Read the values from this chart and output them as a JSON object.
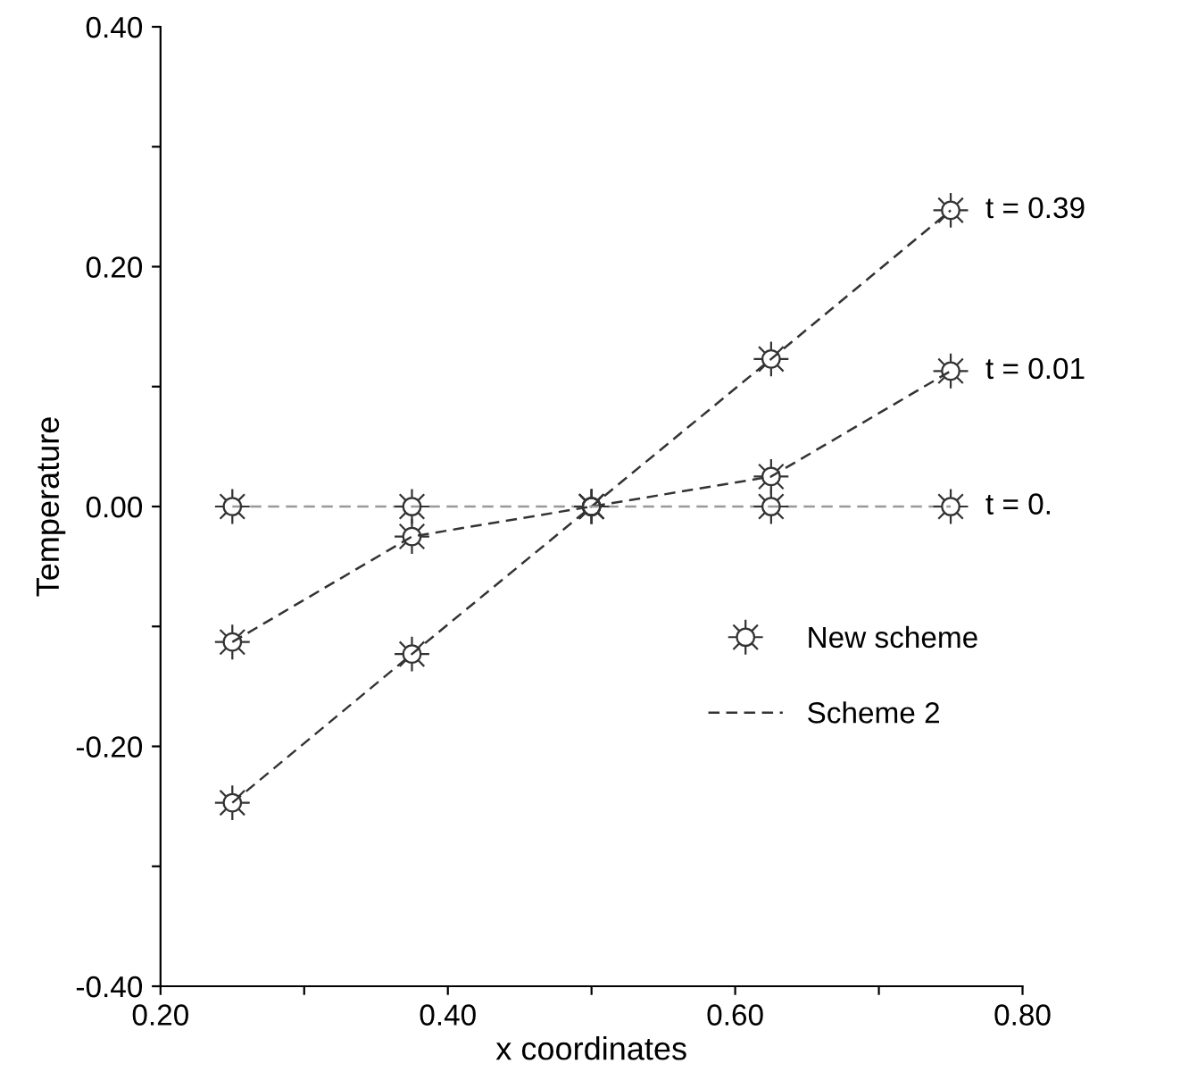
{
  "chart_data": {
    "type": "line",
    "xlabel": "x coordinates",
    "ylabel": "Temperature",
    "x": [
      0.25,
      0.375,
      0.5,
      0.625,
      0.75
    ],
    "series": [
      {
        "line_style": "dashed",
        "marker": "none",
        "color": "#333333",
        "name": "Scheme 2",
        "values": [
          -0.247,
          -0.123,
          0,
          0.123,
          0.247
        ]
      },
      {
        "line_style": "dashed",
        "marker": "none",
        "color": "#333333",
        "values": [
          -0.113,
          -0.025,
          0,
          0.025,
          0.113
        ]
      },
      {
        "line_style": "dashed",
        "marker": "none",
        "color": "#999999",
        "values": [
          0,
          0,
          0,
          0,
          0
        ]
      },
      {
        "type": "scatter",
        "marker": "cross",
        "color": "#333333",
        "values": [
          0,
          0,
          0,
          0,
          0
        ]
      },
      {
        "type": "scatter",
        "marker": "cross",
        "color": "#333333",
        "values": [
          -0.113,
          -0.025,
          0,
          0.025,
          0.113
        ]
      },
      {
        "type": "scatter",
        "marker": "cross",
        "color": "#333333",
        "name": "New scheme",
        "values": [
          -0.247,
          -0.123,
          0,
          0.123,
          0.247
        ]
      }
    ],
    "annotations": [
      "t = 0.39",
      "t = 0.01",
      "t = 0."
    ],
    "xlim": [
      0.2,
      0.8
    ],
    "xticks": [
      {
        "value": 0.2,
        "label": "0.20"
      },
      {
        "value": 0.3,
        "label": null
      },
      {
        "value": 0.4,
        "label": "0.40"
      },
      {
        "value": 0.5,
        "label": null
      },
      {
        "value": 0.6,
        "label": "0.60"
      },
      {
        "value": 0.7,
        "label": null
      },
      {
        "value": 0.8,
        "label": "0.80"
      }
    ],
    "ylim": [
      -0.4,
      0.4
    ],
    "yticks": [
      {
        "value": -0.4,
        "label": "-0.40"
      },
      {
        "value": -0.3,
        "label": null
      },
      {
        "value": -0.2,
        "label": "-0.20"
      },
      {
        "value": -0.1,
        "label": null
      },
      {
        "value": 0,
        "label": "0.00"
      },
      {
        "value": 0.1,
        "label": null
      },
      {
        "value": 0.2,
        "label": "0.20"
      },
      {
        "value": 0.3,
        "label": null
      },
      {
        "value": 0.4,
        "label": "0.40"
      }
    ],
    "grid": false,
    "legend": "bottom right"
  }
}
